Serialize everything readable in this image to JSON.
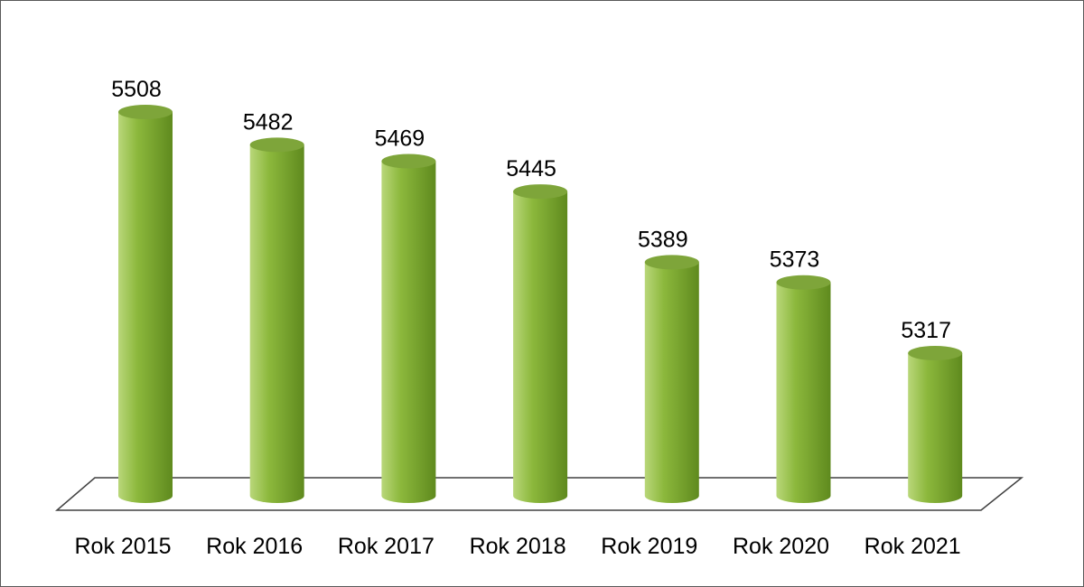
{
  "chart_data": {
    "type": "bar",
    "style": "3d-cylinder",
    "categories": [
      "Rok 2015",
      "Rok 2016",
      "Rok 2017",
      "Rok 2018",
      "Rok 2019",
      "Rok 2020",
      "Rok 2021"
    ],
    "values": [
      5508,
      5482,
      5469,
      5445,
      5389,
      5373,
      5317
    ],
    "data_labels": [
      "5508",
      "5482",
      "5469",
      "5445",
      "5389",
      "5373",
      "5317"
    ],
    "title": "",
    "xlabel": "",
    "ylabel": "",
    "grid": false,
    "legend": "none",
    "colors": {
      "bar_light": "#b9d77a",
      "bar_mid": "#8cb83c",
      "bar_dark": "#5f8a1e",
      "bar_top": "#7ea53a",
      "floor_stroke": "#404040"
    }
  }
}
